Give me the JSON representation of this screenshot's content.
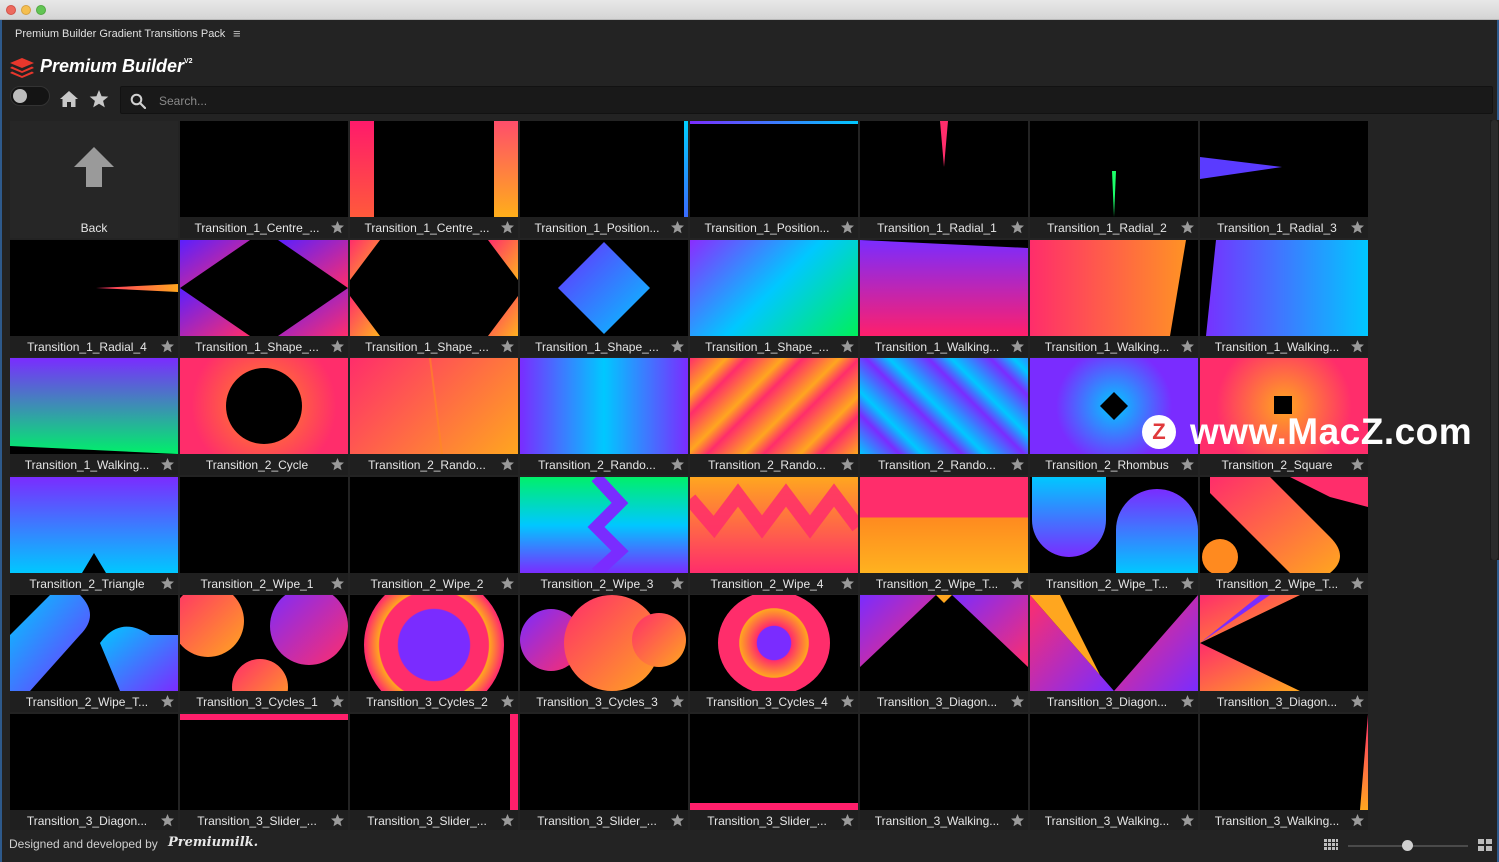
{
  "panel": {
    "title": "Premium Builder Gradient Transitions Pack",
    "menu_glyph": "≡"
  },
  "brand": {
    "name": "Premium Builder",
    "version": "V2"
  },
  "search": {
    "placeholder": "Search..."
  },
  "back": {
    "label": "Back"
  },
  "tiles": [
    {
      "label": "Transition_1_Centre_...",
      "thumb": "blank"
    },
    {
      "label": "Transition_1_Centre_...",
      "thumb": "c1b"
    },
    {
      "label": "Transition_1_Position...",
      "thumb": "p1"
    },
    {
      "label": "Transition_1_Position...",
      "thumb": "p2"
    },
    {
      "label": "Transition_1_Radial_1",
      "thumb": "r1"
    },
    {
      "label": "Transition_1_Radial_2",
      "thumb": "r2"
    },
    {
      "label": "Transition_1_Radial_3",
      "thumb": "r3"
    },
    {
      "label": "Transition_1_Radial_4",
      "thumb": "r4"
    },
    {
      "label": "Transition_1_Shape_...",
      "thumb": "s1"
    },
    {
      "label": "Transition_1_Shape_...",
      "thumb": "s2"
    },
    {
      "label": "Transition_1_Shape_...",
      "thumb": "s3"
    },
    {
      "label": "Transition_1_Shape_...",
      "thumb": "s4"
    },
    {
      "label": "Transition_1_Walking...",
      "thumb": "w1"
    },
    {
      "label": "Transition_1_Walking...",
      "thumb": "w2"
    },
    {
      "label": "Transition_1_Walking...",
      "thumb": "w3"
    },
    {
      "label": "Transition_1_Walking...",
      "thumb": "w4"
    },
    {
      "label": "Transition_2_Cycle",
      "thumb": "cyc"
    },
    {
      "label": "Transition_2_Rando...",
      "thumb": "rd1"
    },
    {
      "label": "Transition_2_Rando...",
      "thumb": "rd2"
    },
    {
      "label": "Transition_2_Rando...",
      "thumb": "rd3"
    },
    {
      "label": "Transition_2_Rando...",
      "thumb": "rd4"
    },
    {
      "label": "Transition_2_Rhombus",
      "thumb": "rh"
    },
    {
      "label": "Transition_2_Square",
      "thumb": "sq"
    },
    {
      "label": "Transition_2_Triangle",
      "thumb": "tri"
    },
    {
      "label": "Transition_2_Wipe_1",
      "thumb": "blank"
    },
    {
      "label": "Transition_2_Wipe_2",
      "thumb": "blank"
    },
    {
      "label": "Transition_2_Wipe_3",
      "thumb": "wp3"
    },
    {
      "label": "Transition_2_Wipe_4",
      "thumb": "wp4"
    },
    {
      "label": "Transition_2_Wipe_T...",
      "thumb": "wt1"
    },
    {
      "label": "Transition_2_Wipe_T...",
      "thumb": "wt2"
    },
    {
      "label": "Transition_2_Wipe_T...",
      "thumb": "wt3"
    },
    {
      "label": "Transition_2_Wipe_T...",
      "thumb": "wt4"
    },
    {
      "label": "Transition_3_Cycles_1",
      "thumb": "cy1"
    },
    {
      "label": "Transition_3_Cycles_2",
      "thumb": "cy2"
    },
    {
      "label": "Transition_3_Cycles_3",
      "thumb": "cy3"
    },
    {
      "label": "Transition_3_Cycles_4",
      "thumb": "cy4"
    },
    {
      "label": "Transition_3_Diagon...",
      "thumb": "dg1"
    },
    {
      "label": "Transition_3_Diagon...",
      "thumb": "dg2"
    },
    {
      "label": "Transition_3_Diagon...",
      "thumb": "dg3"
    },
    {
      "label": "Transition_3_Diagon...",
      "thumb": "blank"
    },
    {
      "label": "Transition_3_Slider_...",
      "thumb": "sl1"
    },
    {
      "label": "Transition_3_Slider_...",
      "thumb": "sl2"
    },
    {
      "label": "Transition_3_Slider_...",
      "thumb": "blank"
    },
    {
      "label": "Transition_3_Slider_...",
      "thumb": "sl4"
    },
    {
      "label": "Transition_3_Walking...",
      "thumb": "blank"
    },
    {
      "label": "Transition_3_Walking...",
      "thumb": "blank"
    },
    {
      "label": "Transition_3_Walking...",
      "thumb": "wk3"
    }
  ],
  "footer": {
    "text": "Designed and developed by",
    "brand": "Premiumilk."
  },
  "watermark": {
    "badge": "Z",
    "text": "www.MacZ.com"
  },
  "colors": {
    "accent": "#2e5a8c",
    "panel_bg": "#232323",
    "tile_bg": "#1f1f1f"
  }
}
